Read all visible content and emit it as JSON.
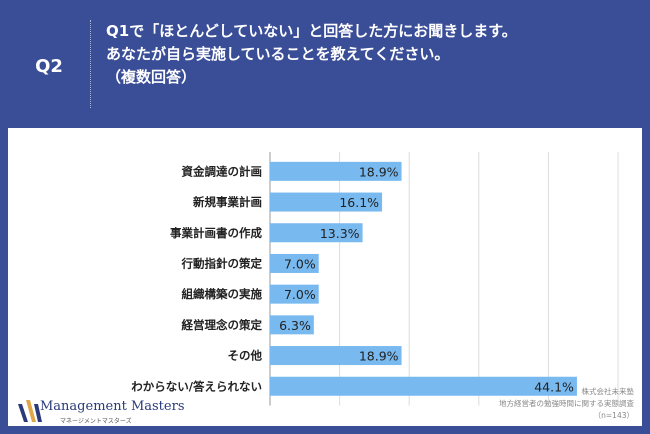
{
  "question": {
    "label": "Q2",
    "lines": [
      "Q1で「ほとんどしていない」と回答した方にお聞きします。",
      "あなたが自ら実施していることを教えてください。",
      "（複数回答）"
    ]
  },
  "chart_data": {
    "type": "bar",
    "orientation": "horizontal",
    "categories": [
      "資金調達の計画",
      "新規事業計画",
      "事業計画書の作成",
      "行動指針の策定",
      "組織構築の実施",
      "経営理念の策定",
      "その他",
      "わからない/答えられない"
    ],
    "values": [
      18.9,
      16.1,
      13.3,
      7.0,
      7.0,
      6.3,
      18.9,
      44.1
    ],
    "value_labels": [
      "18.9%",
      "16.1%",
      "13.3%",
      "7.0%",
      "7.0%",
      "6.3%",
      "18.9%",
      "44.1%"
    ],
    "xlim": [
      0,
      50
    ],
    "grid": true,
    "bar_color": "#78b9f0"
  },
  "logo": {
    "name": "Management Masters",
    "sub": "マネージメントマスターズ"
  },
  "credit": {
    "company": "株式会社未来塾",
    "survey": "地方経営者の勉強時間に関する実態調査",
    "n": "（n=143）"
  }
}
